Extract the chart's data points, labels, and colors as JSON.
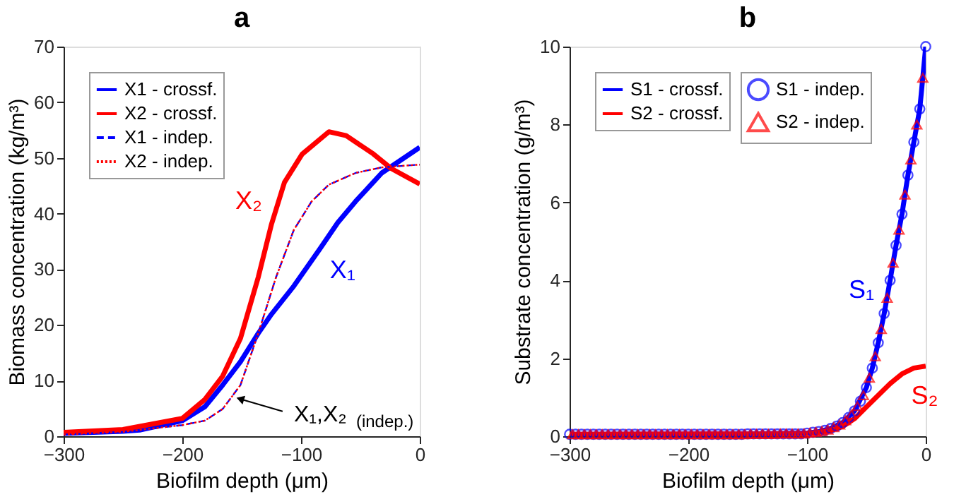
{
  "chart_data": [
    {
      "type": "line",
      "title": "a",
      "xlabel": "Biofilm depth (μm)",
      "ylabel": "Biomass concentration (kg/m³)",
      "xlim": [
        -300,
        0
      ],
      "ylim": [
        0,
        70
      ],
      "xticks": [
        -300,
        -200,
        -100,
        0
      ],
      "yticks": [
        0,
        10,
        20,
        30,
        40,
        50,
        60,
        70
      ],
      "legend": "top left",
      "grid": false,
      "series": [
        {
          "name": "X1 - crossf.",
          "color": "#0000ff",
          "line_style": "solid",
          "x": [
            -300,
            -250,
            -236,
            -200,
            -181,
            -166,
            -151,
            -136,
            -125,
            -106,
            -84,
            -69,
            -54,
            -32,
            0
          ],
          "values": [
            0.5,
            0.9,
            1.1,
            2.8,
            5.3,
            9.2,
            13.4,
            18.5,
            21.9,
            27,
            33.7,
            38.4,
            42.2,
            47.3,
            51.9
          ]
        },
        {
          "name": "X2 - crossf.",
          "color": "#ff0000",
          "line_style": "solid",
          "x": [
            -300,
            -250,
            -200,
            -181,
            -166,
            -151,
            -136,
            -125,
            -114,
            -99,
            -76.5,
            -62,
            -39,
            -24,
            0
          ],
          "values": [
            0.7,
            1.2,
            3.2,
            6.6,
            10.8,
            17.6,
            28.6,
            38,
            45.6,
            50.7,
            54.7,
            54,
            50.7,
            48.1,
            45.3
          ]
        },
        {
          "name": "X1 - indep.",
          "color": "#0000ff",
          "line_style": "dashed",
          "x": [
            -300,
            -250,
            -200,
            -181,
            -166,
            -151,
            -136,
            -121,
            -106,
            -91,
            -76.5,
            -54,
            -32,
            0
          ],
          "values": [
            0.3,
            0.8,
            2,
            2.8,
            4.9,
            9.2,
            18.5,
            28.6,
            37.1,
            42.2,
            45.2,
            47.3,
            48.3,
            48.8
          ]
        },
        {
          "name": "X2 - indep.",
          "color": "#ff0000",
          "line_style": "dotted",
          "x": [
            -300,
            -250,
            -200,
            -181,
            -166,
            -151,
            -136,
            -121,
            -106,
            -91,
            -76.5,
            -54,
            -32,
            0
          ],
          "values": [
            0.3,
            0.8,
            2,
            2.8,
            4.9,
            9.2,
            18.5,
            28.6,
            37.1,
            42.2,
            45.2,
            47.3,
            48.3,
            48.8
          ]
        }
      ],
      "annotations": [
        {
          "text": "X₁",
          "x": -84,
          "y": 33.7
        },
        {
          "text": "X₂",
          "x": -125,
          "y": 38
        },
        {
          "text": "X₁,X₂$_{(indep.)}$",
          "x": -156,
          "y": 7
        }
      ]
    },
    {
      "type": "line",
      "title": "b",
      "xlabel": "Biofilm depth (μm)",
      "ylabel": "Substrate concentration (g/m³)",
      "xlim": [
        -300,
        0
      ],
      "ylim": [
        0,
        10
      ],
      "xticks": [
        -300,
        -200,
        -100,
        0
      ],
      "yticks": [
        0,
        2,
        4,
        6,
        8,
        10
      ],
      "legend": "top left",
      "grid": false,
      "series": [
        {
          "name": "S1 - crossf.",
          "color": "#0000ff",
          "line_style": "solid",
          "x": [
            -300,
            -150,
            -100,
            -90,
            -80,
            -70,
            -60,
            -50,
            -45,
            -40,
            -35,
            -30,
            -25,
            -20,
            -15,
            -10,
            -5,
            0
          ],
          "values": [
            0.05,
            0.06,
            0.08,
            0.12,
            0.2,
            0.35,
            0.65,
            1.25,
            1.75,
            2.4,
            3.15,
            4.0,
            4.9,
            5.7,
            6.7,
            7.55,
            8.4,
            10
          ]
        },
        {
          "name": "S2 - crossf.",
          "color": "#ff0000",
          "line_style": "solid",
          "x": [
            -300,
            -150,
            -100,
            -90,
            -80,
            -70,
            -60,
            -50,
            -40,
            -30,
            -20,
            -10,
            0
          ],
          "values": [
            0.05,
            0.06,
            0.07,
            0.1,
            0.15,
            0.25,
            0.45,
            0.75,
            1.05,
            1.35,
            1.6,
            1.75,
            1.8
          ]
        },
        {
          "name": "S1 - indep.",
          "color": "#0000ff",
          "type": "scatter",
          "marker": "circle",
          "x": [
            0,
            -5,
            -10,
            -15,
            -20,
            -25,
            -30,
            -35,
            -40,
            -45,
            -50,
            -55,
            -60,
            -65,
            -70,
            -75,
            -80,
            -85,
            -90,
            -95,
            -100,
            -105,
            -110,
            -115,
            -120,
            -125,
            -130,
            -135,
            -140,
            -145,
            -150,
            -155,
            -160,
            -165,
            -170,
            -175,
            -180,
            -185,
            -190,
            -195,
            -200,
            -205,
            -210,
            -215,
            -220,
            -225,
            -230,
            -235,
            -240,
            -245,
            -250,
            -255,
            -260,
            -265,
            -270,
            -275,
            -280,
            -285,
            -290,
            -295,
            -300
          ],
          "values": [
            10,
            8.4,
            7.55,
            6.7,
            5.7,
            4.9,
            4.0,
            3.15,
            2.4,
            1.75,
            1.25,
            0.9,
            0.65,
            0.48,
            0.35,
            0.26,
            0.2,
            0.15,
            0.12,
            0.1,
            0.08,
            0.06,
            0.06,
            0.06,
            0.06,
            0.06,
            0.06,
            0.06,
            0.06,
            0.06,
            0.06,
            0.05,
            0.05,
            0.05,
            0.05,
            0.05,
            0.05,
            0.05,
            0.05,
            0.05,
            0.05,
            0.05,
            0.05,
            0.05,
            0.05,
            0.05,
            0.05,
            0.05,
            0.05,
            0.05,
            0.05,
            0.05,
            0.05,
            0.05,
            0.05,
            0.05,
            0.05,
            0.05,
            0.05,
            0.05,
            0.05
          ]
        },
        {
          "name": "S2 - indep.",
          "color": "#ff0000",
          "type": "scatter",
          "marker": "triangle",
          "x": [
            -2.5,
            -7.5,
            -12.5,
            -17.5,
            -22.5,
            -27.5,
            -32.5,
            -37.5,
            -42.5,
            -47.5,
            -52.5,
            -57.5,
            -62.5,
            -67.5,
            -72.5,
            -77.5,
            -82.5,
            -87.5,
            -92.5,
            -97.5,
            -102.5,
            -107.5,
            -112.5,
            -117.5,
            -122.5,
            -127.5,
            -132.5,
            -137.5,
            -142.5,
            -147.5,
            -152.5,
            -157.5,
            -162.5,
            -167.5,
            -172.5,
            -177.5,
            -182.5,
            -187.5,
            -192.5,
            -197.5,
            -202.5,
            -207.5,
            -212.5,
            -217.5,
            -222.5,
            -227.5,
            -232.5,
            -237.5,
            -242.5,
            -247.5,
            -252.5,
            -257.5,
            -262.5,
            -267.5,
            -272.5,
            -277.5,
            -282.5,
            -287.5,
            -292.5,
            -297.5
          ],
          "values": [
            9.2,
            8.0,
            7.1,
            6.2,
            5.3,
            4.45,
            3.55,
            2.75,
            2.05,
            1.5,
            1.05,
            0.77,
            0.56,
            0.41,
            0.3,
            0.23,
            0.17,
            0.13,
            0.11,
            0.09,
            0.07,
            0.07,
            0.07,
            0.07,
            0.07,
            0.06,
            0.06,
            0.06,
            0.06,
            0.06,
            0.05,
            0.05,
            0.05,
            0.05,
            0.05,
            0.05,
            0.05,
            0.05,
            0.05,
            0.05,
            0.05,
            0.05,
            0.05,
            0.05,
            0.05,
            0.05,
            0.05,
            0.05,
            0.05,
            0.05,
            0.05,
            0.05,
            0.05,
            0.05,
            0.05,
            0.05,
            0.05,
            0.05,
            0.05,
            0.05
          ]
        }
      ],
      "annotations": [
        {
          "text": "S₁",
          "x": -35,
          "y": 3.15
        },
        {
          "text": "S₂",
          "x": -20,
          "y": 1.6
        }
      ]
    }
  ]
}
